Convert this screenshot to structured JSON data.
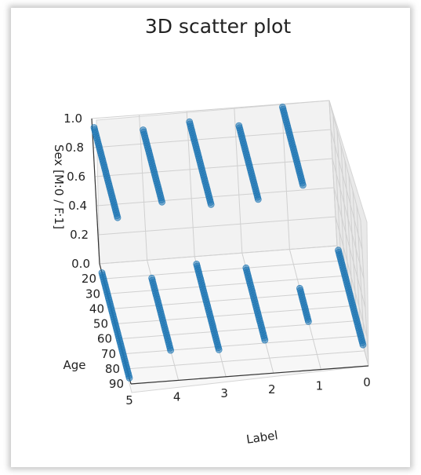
{
  "chart_data": {
    "type": "scatter",
    "projection": "3d",
    "title": "3D scatter plot",
    "xlabel": "Label",
    "ylabel": "Age",
    "zlabel": "Sex [M:0 / F:1]",
    "x_ticks": [
      "0",
      "1",
      "2",
      "3",
      "4",
      "5"
    ],
    "y_ticks": [
      "20",
      "30",
      "40",
      "50",
      "60",
      "70",
      "80",
      "90"
    ],
    "z_ticks": [
      "0.0",
      "0.2",
      "0.4",
      "0.6",
      "0.8",
      "1.0"
    ],
    "xlim": [
      0,
      5
    ],
    "ylim": [
      10,
      90
    ],
    "zlim": [
      0,
      1
    ],
    "grid": true,
    "marker_color": "#1f77b4",
    "series": [
      {
        "label": 5,
        "sex": 1,
        "age_min": 16,
        "age_max": 76
      },
      {
        "label": 4,
        "sex": 1,
        "age_min": 20,
        "age_max": 68
      },
      {
        "label": 3,
        "sex": 1,
        "age_min": 17,
        "age_max": 72
      },
      {
        "label": 2,
        "sex": 1,
        "age_min": 22,
        "age_max": 71
      },
      {
        "label": 1,
        "sex": 1,
        "age_min": 12,
        "age_max": 64
      },
      {
        "label": 5,
        "sex": 0,
        "age_min": 16,
        "age_max": 86
      },
      {
        "label": 4,
        "sex": 0,
        "age_min": 22,
        "age_max": 70
      },
      {
        "label": 3,
        "sex": 0,
        "age_min": 15,
        "age_max": 72
      },
      {
        "label": 2,
        "sex": 0,
        "age_min": 20,
        "age_max": 68
      },
      {
        "label": 1,
        "sex": 0,
        "age_min": 36,
        "age_max": 58
      },
      {
        "label": 0,
        "sex": 0,
        "age_min": 13,
        "age_max": 76
      }
    ]
  }
}
